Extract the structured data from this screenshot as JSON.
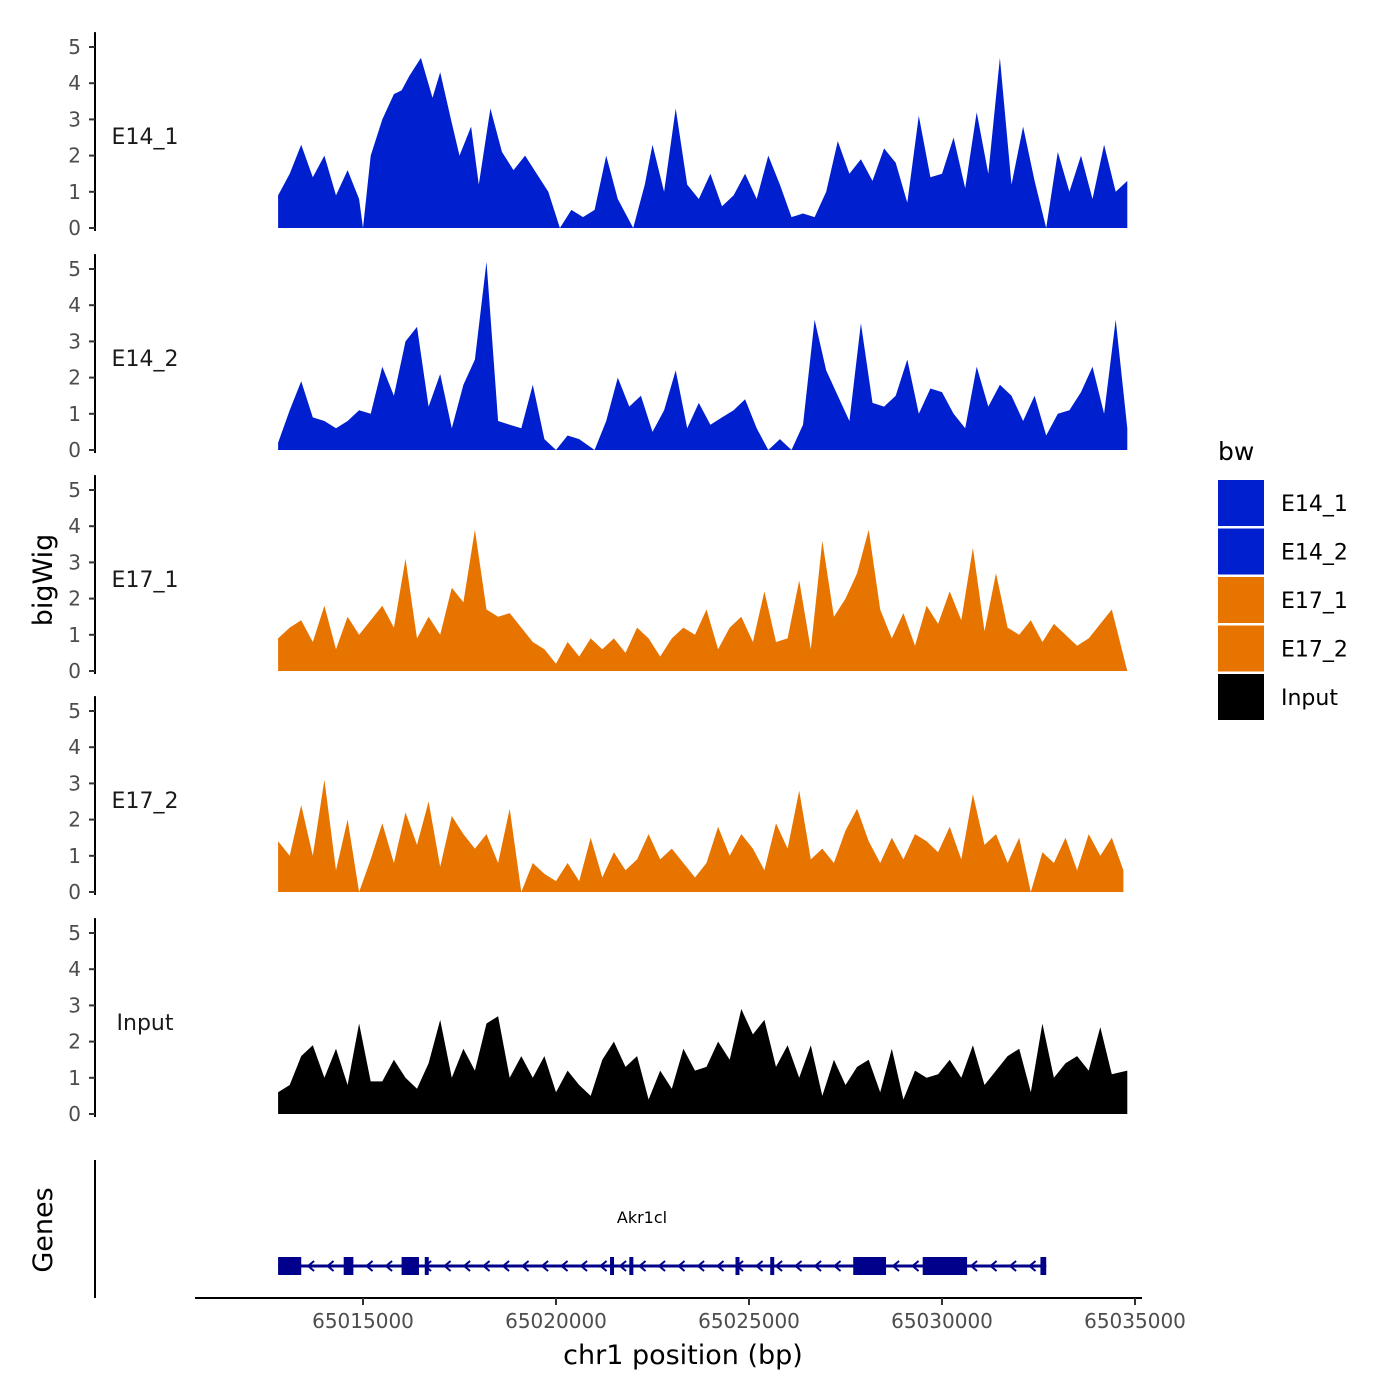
{
  "chart_data": {
    "type": "area",
    "xlabel": "chr1 position (bp)",
    "ylabel": "bigWig",
    "genes_label": "Genes",
    "xlim": [
      65010000,
      65036000
    ],
    "x_ticks": [
      65015000,
      65020000,
      65025000,
      65030000,
      65035000
    ],
    "x_tick_labels": [
      "65015000",
      "65020000",
      "65025000",
      "65030000",
      "65035000"
    ],
    "ylim": [
      0,
      5.3
    ],
    "y_ticks": [
      0,
      1,
      2,
      3,
      4,
      5
    ],
    "y_tick_labels": [
      "0",
      "1",
      "2",
      "3",
      "4",
      "5"
    ],
    "legend": {
      "title": "bw",
      "position": "right",
      "entries": [
        {
          "label": "E14_1",
          "color": "#0020D0"
        },
        {
          "label": "E14_2",
          "color": "#0020D0"
        },
        {
          "label": "E17_1",
          "color": "#E87400"
        },
        {
          "label": "E17_2",
          "color": "#E87400"
        },
        {
          "label": "Input",
          "color": "#000000"
        }
      ]
    },
    "series": [
      {
        "name": "E14_1",
        "color": "#0020D0",
        "x": [
          65012800,
          65013100,
          65013400,
          65013700,
          65014000,
          65014300,
          65014600,
          65014900,
          65015000,
          65015200,
          65015500,
          65015800,
          65016000,
          65016200,
          65016500,
          65016800,
          65017000,
          65017300,
          65017500,
          65017800,
          65018000,
          65018300,
          65018600,
          65018900,
          65019200,
          65019500,
          65019800,
          65020100,
          65020400,
          65020700,
          65021000,
          65021300,
          65021600,
          65021800,
          65022000,
          65022300,
          65022500,
          65022800,
          65023100,
          65023400,
          65023700,
          65024000,
          65024300,
          65024600,
          65024900,
          65025200,
          65025500,
          65025800,
          65026100,
          65026400,
          65026700,
          65027000,
          65027300,
          65027600,
          65027900,
          65028200,
          65028500,
          65028800,
          65029100,
          65029400,
          65029700,
          65030000,
          65030300,
          65030600,
          65030900,
          65031200,
          65031500,
          65031800,
          65032100,
          65032400,
          65032700,
          65033000,
          65033300,
          65033600,
          65033900,
          65034200,
          65034500,
          65034800
        ],
        "y": [
          0.9,
          1.5,
          2.3,
          1.4,
          2.0,
          0.9,
          1.6,
          0.8,
          0.0,
          2.0,
          3.0,
          3.7,
          3.8,
          4.2,
          4.7,
          3.6,
          4.3,
          2.9,
          2.0,
          2.8,
          1.2,
          3.3,
          2.1,
          1.6,
          2.0,
          1.5,
          1.0,
          0.0,
          0.5,
          0.3,
          0.5,
          2.0,
          0.8,
          0.4,
          0.0,
          1.2,
          2.3,
          1.0,
          3.3,
          1.2,
          0.8,
          1.5,
          0.6,
          0.9,
          1.5,
          0.8,
          2.0,
          1.2,
          0.3,
          0.4,
          0.3,
          1.0,
          2.4,
          1.5,
          1.9,
          1.3,
          2.2,
          1.8,
          0.7,
          3.1,
          1.4,
          1.5,
          2.5,
          1.1,
          3.2,
          1.5,
          4.7,
          1.2,
          2.8,
          1.3,
          0.0,
          2.1,
          1.0,
          2.0,
          0.8,
          2.3,
          1.0,
          1.3
        ]
      },
      {
        "name": "E14_2",
        "color": "#0020D0",
        "x": [
          65012800,
          65013100,
          65013400,
          65013700,
          65014000,
          65014300,
          65014600,
          65014900,
          65015200,
          65015500,
          65015800,
          65016100,
          65016400,
          65016700,
          65017000,
          65017300,
          65017600,
          65017900,
          65018200,
          65018500,
          65018800,
          65019100,
          65019400,
          65019700,
          65020000,
          65020300,
          65020600,
          65021000,
          65021300,
          65021600,
          65021900,
          65022200,
          65022500,
          65022800,
          65023100,
          65023400,
          65023700,
          65024000,
          65024300,
          65024600,
          65024900,
          65025200,
          65025500,
          65025800,
          65026100,
          65026400,
          65026700,
          65027000,
          65027300,
          65027600,
          65027900,
          65028200,
          65028500,
          65028800,
          65029100,
          65029400,
          65029700,
          65030000,
          65030300,
          65030600,
          65030900,
          65031200,
          65031500,
          65031800,
          65032100,
          65032400,
          65032700,
          65033000,
          65033300,
          65033600,
          65033900,
          65034200,
          65034500,
          65034800
        ],
        "y": [
          0.2,
          1.1,
          1.9,
          0.9,
          0.8,
          0.6,
          0.8,
          1.1,
          1.0,
          2.3,
          1.5,
          3.0,
          3.4,
          1.2,
          2.1,
          0.6,
          1.8,
          2.5,
          5.2,
          0.8,
          0.7,
          0.6,
          1.8,
          0.3,
          0.0,
          0.4,
          0.3,
          0.0,
          0.8,
          2.0,
          1.2,
          1.5,
          0.5,
          1.1,
          2.2,
          0.6,
          1.3,
          0.7,
          0.9,
          1.1,
          1.4,
          0.6,
          0.0,
          0.3,
          0.0,
          0.7,
          3.6,
          2.2,
          1.5,
          0.8,
          3.5,
          1.3,
          1.2,
          1.5,
          2.5,
          1.0,
          1.7,
          1.6,
          1.0,
          0.6,
          2.3,
          1.2,
          1.8,
          1.5,
          0.8,
          1.5,
          0.4,
          1.0,
          1.1,
          1.6,
          2.3,
          1.0,
          3.6,
          0.6
        ]
      },
      {
        "name": "E17_1",
        "color": "#E87400",
        "x": [
          65012800,
          65013100,
          65013400,
          65013700,
          65014000,
          65014300,
          65014600,
          65014900,
          65015200,
          65015500,
          65015800,
          65016100,
          65016400,
          65016700,
          65017000,
          65017300,
          65017600,
          65017900,
          65018200,
          65018500,
          65018800,
          65019100,
          65019400,
          65019700,
          65020000,
          65020300,
          65020600,
          65020900,
          65021200,
          65021500,
          65021800,
          65022100,
          65022400,
          65022700,
          65023000,
          65023300,
          65023600,
          65023900,
          65024200,
          65024500,
          65024800,
          65025100,
          65025400,
          65025700,
          65026000,
          65026300,
          65026600,
          65026900,
          65027200,
          65027500,
          65027800,
          65028100,
          65028400,
          65028700,
          65029000,
          65029300,
          65029600,
          65029900,
          65030200,
          65030500,
          65030800,
          65031100,
          65031400,
          65031700,
          65032000,
          65032300,
          65032600,
          65032900,
          65033200,
          65033500,
          65033800,
          65034100,
          65034400,
          65034800
        ],
        "y": [
          0.9,
          1.2,
          1.4,
          0.8,
          1.8,
          0.6,
          1.5,
          1.0,
          1.4,
          1.8,
          1.2,
          3.1,
          0.9,
          1.5,
          1.0,
          2.3,
          1.9,
          3.9,
          1.7,
          1.5,
          1.6,
          1.2,
          0.8,
          0.6,
          0.2,
          0.8,
          0.4,
          0.9,
          0.6,
          0.9,
          0.5,
          1.2,
          0.9,
          0.4,
          0.9,
          1.2,
          1.0,
          1.7,
          0.6,
          1.2,
          1.5,
          0.8,
          2.2,
          0.8,
          0.9,
          2.5,
          0.6,
          3.6,
          1.5,
          2.0,
          2.7,
          3.9,
          1.7,
          0.9,
          1.6,
          0.7,
          1.8,
          1.3,
          2.2,
          1.4,
          3.4,
          1.1,
          2.7,
          1.2,
          1.0,
          1.4,
          0.8,
          1.3,
          1.0,
          0.7,
          0.9,
          1.3,
          1.7,
          0.0
        ]
      },
      {
        "name": "E17_2",
        "color": "#E87400",
        "x": [
          65012800,
          65013100,
          65013400,
          65013700,
          65014000,
          65014300,
          65014600,
          65014900,
          65015200,
          65015500,
          65015800,
          65016100,
          65016400,
          65016700,
          65017000,
          65017300,
          65017600,
          65017900,
          65018200,
          65018500,
          65018800,
          65019100,
          65019400,
          65019700,
          65020000,
          65020300,
          65020600,
          65020900,
          65021200,
          65021500,
          65021800,
          65022100,
          65022400,
          65022700,
          65023000,
          65023300,
          65023600,
          65023900,
          65024200,
          65024500,
          65024800,
          65025100,
          65025400,
          65025700,
          65026000,
          65026300,
          65026600,
          65026900,
          65027200,
          65027500,
          65027800,
          65028100,
          65028400,
          65028700,
          65029000,
          65029300,
          65029600,
          65029900,
          65030200,
          65030500,
          65030800,
          65031100,
          65031400,
          65031700,
          65032000,
          65032300,
          65032600,
          65032900,
          65033200,
          65033500,
          65033800,
          65034100,
          65034400,
          65034700
        ],
        "y": [
          1.4,
          1.0,
          2.4,
          1.0,
          3.1,
          0.6,
          2.0,
          0.0,
          0.9,
          1.9,
          0.8,
          2.2,
          1.3,
          2.5,
          0.7,
          2.1,
          1.6,
          1.2,
          1.6,
          0.8,
          2.3,
          0.0,
          0.8,
          0.5,
          0.3,
          0.8,
          0.3,
          1.5,
          0.4,
          1.1,
          0.6,
          0.9,
          1.6,
          0.9,
          1.2,
          0.8,
          0.4,
          0.8,
          1.8,
          1.0,
          1.6,
          1.2,
          0.6,
          1.9,
          1.2,
          2.8,
          0.9,
          1.2,
          0.8,
          1.7,
          2.3,
          1.4,
          0.8,
          1.5,
          0.9,
          1.6,
          1.4,
          1.1,
          1.8,
          0.9,
          2.7,
          1.3,
          1.6,
          0.8,
          1.5,
          0.0,
          1.1,
          0.8,
          1.5,
          0.6,
          1.6,
          1.0,
          1.5,
          0.6
        ]
      },
      {
        "name": "Input",
        "color": "#000000",
        "x": [
          65012800,
          65013100,
          65013400,
          65013700,
          65014000,
          65014300,
          65014600,
          65014900,
          65015200,
          65015500,
          65015800,
          65016100,
          65016400,
          65016700,
          65017000,
          65017300,
          65017600,
          65017900,
          65018200,
          65018500,
          65018800,
          65019100,
          65019400,
          65019700,
          65020000,
          65020300,
          65020600,
          65020900,
          65021200,
          65021500,
          65021800,
          65022100,
          65022400,
          65022700,
          65023000,
          65023300,
          65023600,
          65023900,
          65024200,
          65024500,
          65024800,
          65025100,
          65025400,
          65025700,
          65026000,
          65026300,
          65026600,
          65026900,
          65027200,
          65027500,
          65027800,
          65028100,
          65028400,
          65028700,
          65029000,
          65029300,
          65029600,
          65029900,
          65030200,
          65030500,
          65030800,
          65031100,
          65031400,
          65031700,
          65032000,
          65032300,
          65032600,
          65032900,
          65033200,
          65033500,
          65033800,
          65034100,
          65034400,
          65034800
        ],
        "y": [
          0.6,
          0.8,
          1.6,
          1.9,
          1.0,
          1.8,
          0.8,
          2.5,
          0.9,
          0.9,
          1.5,
          1.0,
          0.7,
          1.4,
          2.6,
          1.0,
          1.8,
          1.2,
          2.5,
          2.7,
          1.0,
          1.6,
          1.0,
          1.6,
          0.6,
          1.2,
          0.8,
          0.5,
          1.5,
          2.0,
          1.3,
          1.6,
          0.4,
          1.2,
          0.7,
          1.8,
          1.2,
          1.3,
          2.0,
          1.5,
          2.9,
          2.2,
          2.6,
          1.3,
          1.9,
          1.0,
          1.9,
          0.5,
          1.5,
          0.8,
          1.3,
          1.5,
          0.6,
          1.8,
          0.4,
          1.2,
          1.0,
          1.1,
          1.5,
          1.0,
          1.9,
          0.8,
          1.2,
          1.6,
          1.8,
          0.6,
          2.5,
          1.0,
          1.4,
          1.6,
          1.2,
          2.4,
          1.1,
          1.2
        ]
      }
    ],
    "gene": {
      "name": "Akr1cl",
      "strand": "-",
      "color": "#00008B",
      "start": 65012800,
      "end": 65032700,
      "exons": [
        [
          65012800,
          65013400
        ],
        [
          65014500,
          65014750
        ],
        [
          65016000,
          65016450
        ],
        [
          65016600,
          65016700
        ],
        [
          65021400,
          65021500
        ],
        [
          65021900,
          65022000
        ],
        [
          65024650,
          65024750
        ],
        [
          65025550,
          65025650
        ],
        [
          65027700,
          65028550
        ],
        [
          65029500,
          65030650
        ],
        [
          65032550,
          65032700
        ]
      ]
    }
  }
}
